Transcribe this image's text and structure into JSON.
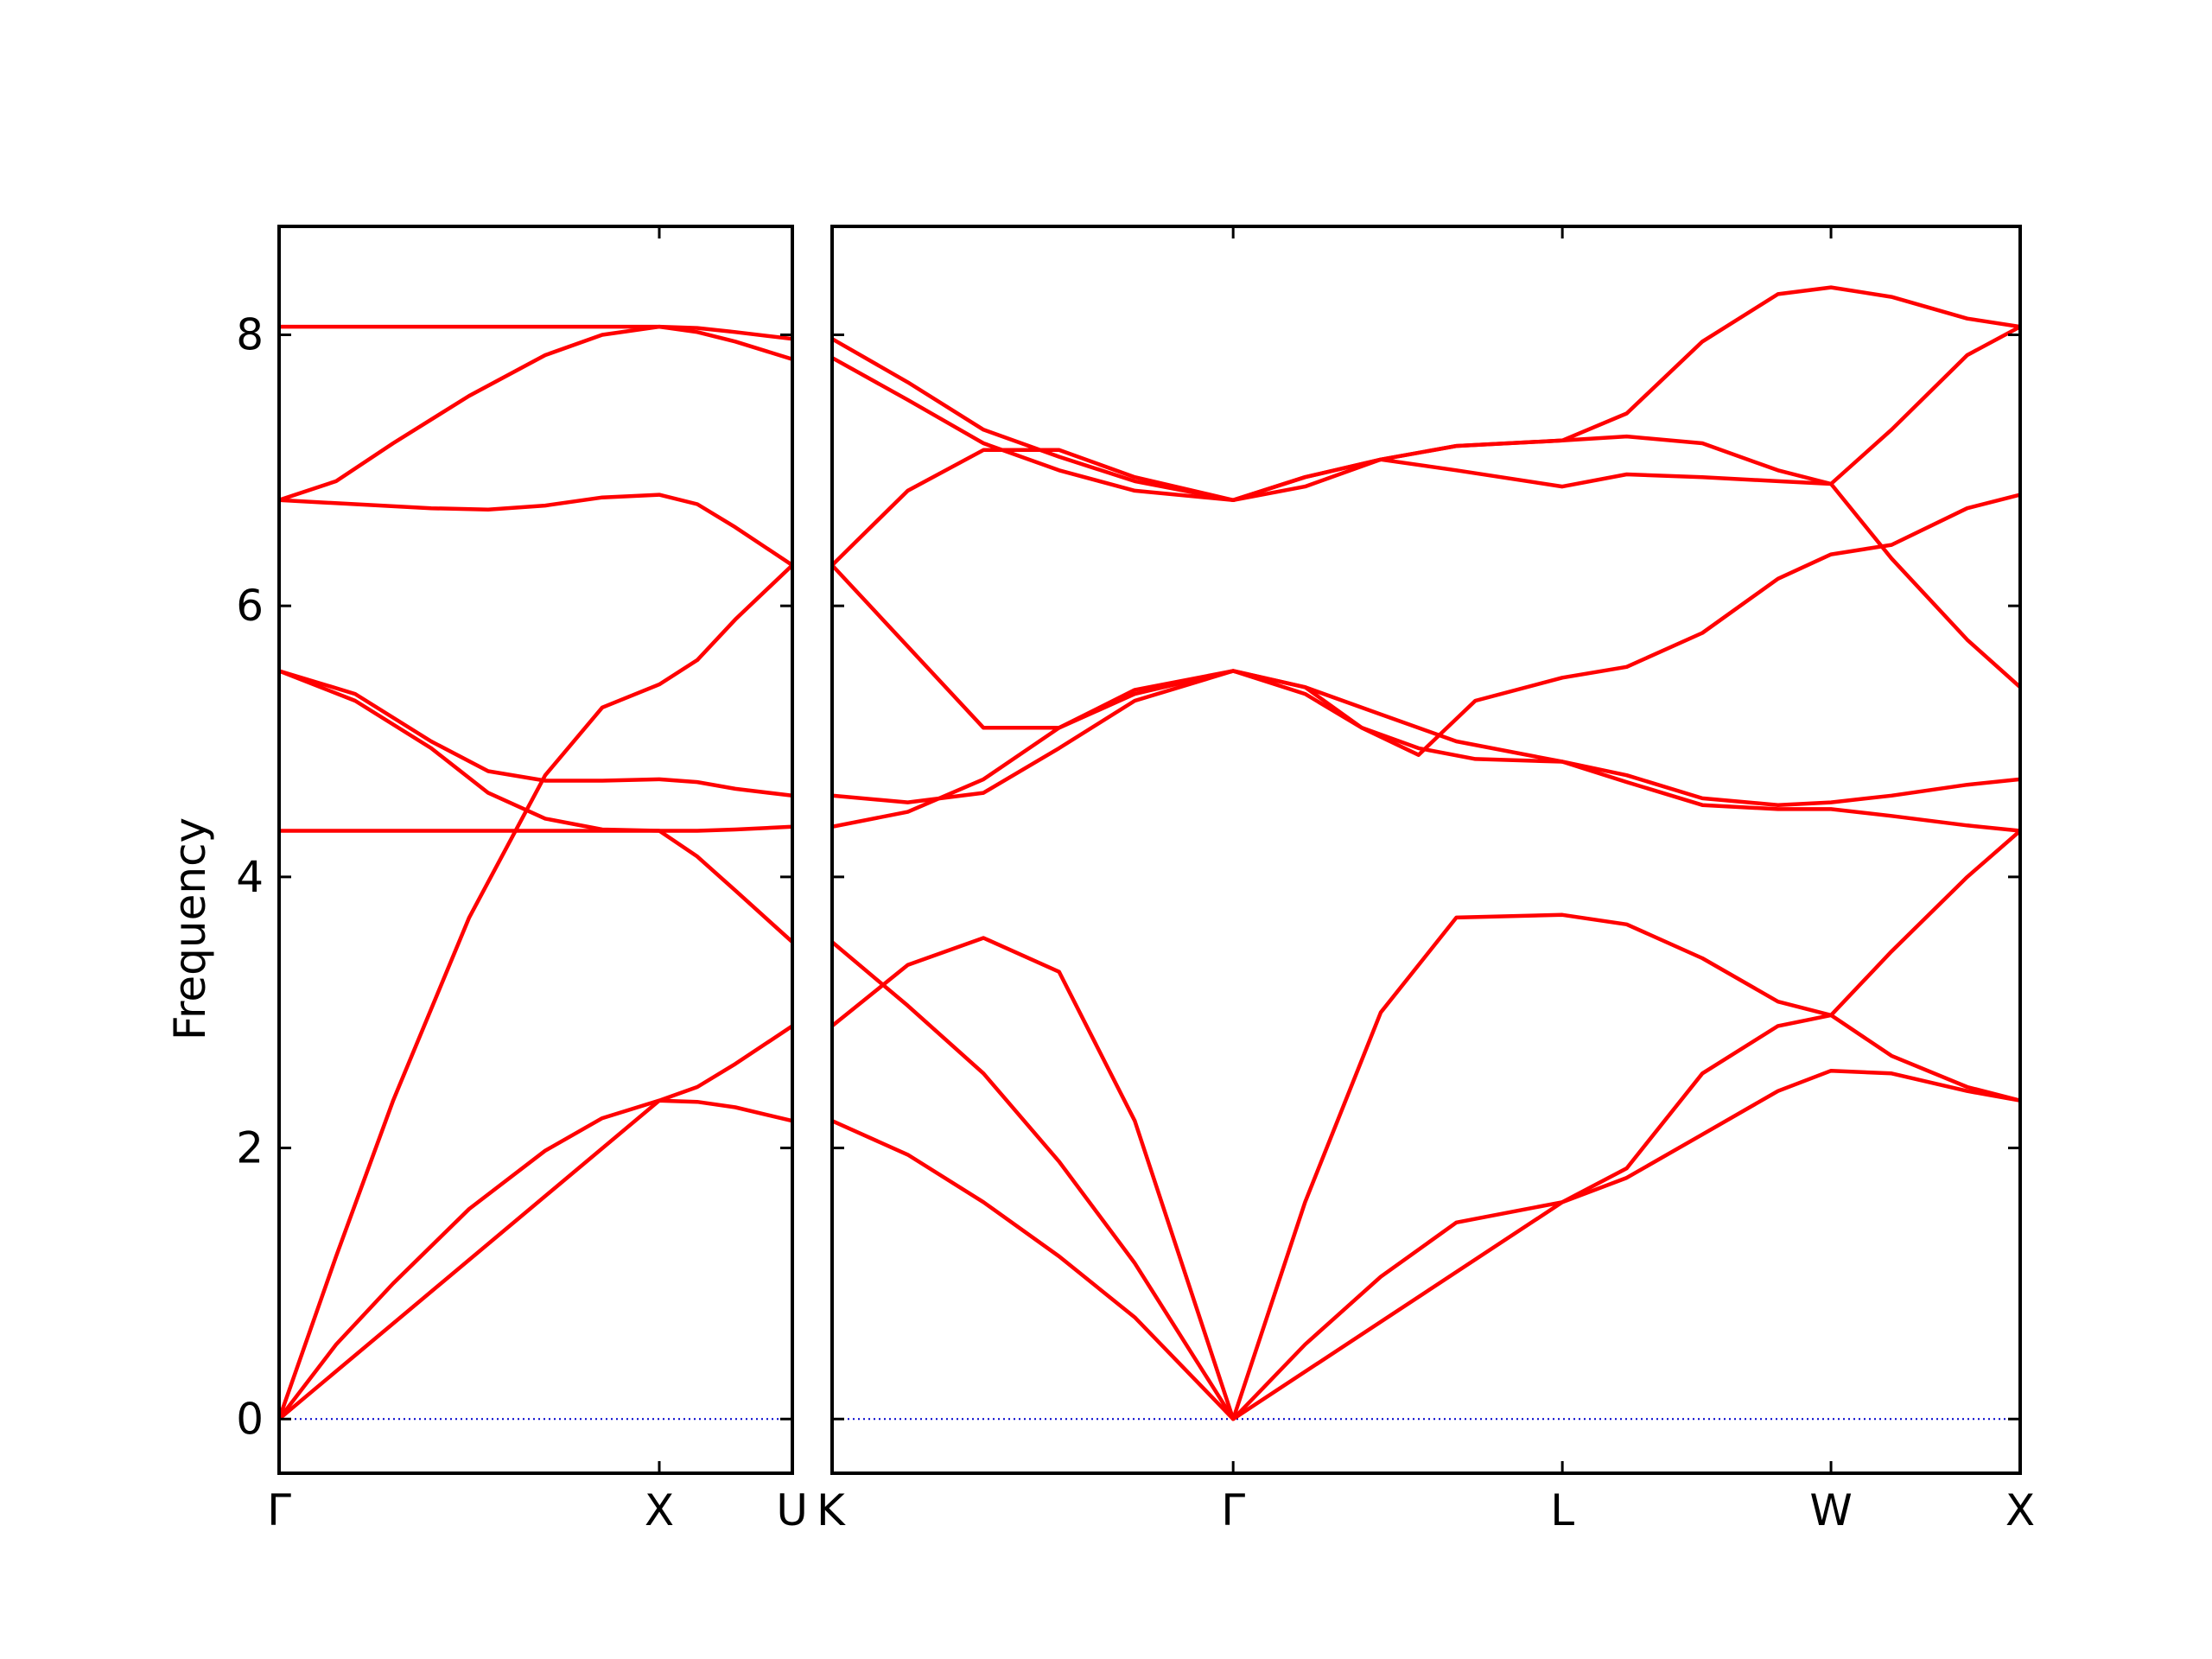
{
  "chart_data": {
    "type": "line",
    "ylabel": "Frequency",
    "ylim": [
      -0.4,
      8.8
    ],
    "yticks": [
      0,
      2,
      4,
      6,
      8
    ],
    "grid": false,
    "legend": "none",
    "colors": {
      "bands": "#ff0000",
      "zero_line": "#0000cc",
      "axes": "#000000"
    },
    "panels": [
      {
        "name": "Γ-X-U",
        "xlim": [
          0,
          1.35
        ],
        "xticks": [
          {
            "x": 0,
            "label": "Γ"
          },
          {
            "x": 1.0,
            "label": "X"
          },
          {
            "x": 1.35,
            "label": "U"
          }
        ],
        "bands": [
          {
            "x": [
              0,
              0.15,
              0.3,
              0.5,
              0.7,
              0.85,
              1.0,
              1.1,
              1.2,
              1.35
            ],
            "y": [
              0,
              0.55,
              1.0,
              1.55,
              1.98,
              2.22,
              2.35,
              2.34,
              2.3,
              2.2
            ]
          },
          {
            "x": [
              0,
              0.15,
              0.3,
              0.5,
              0.7,
              0.85,
              1.0,
              1.1,
              1.2,
              1.35
            ],
            "y": [
              0,
              1.2,
              2.35,
              3.7,
              4.75,
              5.25,
              5.42,
              5.6,
              5.9,
              6.3
            ]
          },
          {
            "x": [
              0,
              1.0,
              1.1,
              1.2,
              1.35
            ],
            "y": [
              0,
              2.35,
              2.45,
              2.62,
              2.9
            ]
          },
          {
            "x": [
              0,
              0.2,
              0.4,
              0.55,
              0.7,
              0.85,
              1.0,
              1.1,
              1.2,
              1.35
            ],
            "y": [
              5.52,
              5.35,
              5.0,
              4.78,
              4.71,
              4.71,
              4.72,
              4.7,
              4.65,
              4.6
            ]
          },
          {
            "x": [
              0,
              0.2,
              0.4,
              0.55,
              0.7,
              0.85,
              1.0,
              1.1,
              1.2,
              1.35
            ],
            "y": [
              5.52,
              5.3,
              4.95,
              4.62,
              4.43,
              4.35,
              4.34,
              4.34,
              4.35,
              4.37
            ]
          },
          {
            "x": [
              0,
              1.0,
              1.1,
              1.2,
              1.35
            ],
            "y": [
              4.34,
              4.34,
              4.15,
              3.9,
              3.52
            ]
          },
          {
            "x": [
              0,
              0.2,
              0.4,
              0.55,
              0.7,
              0.85,
              1.0,
              1.1,
              1.2,
              1.35
            ],
            "y": [
              6.78,
              6.75,
              6.72,
              6.71,
              6.74,
              6.8,
              6.82,
              6.75,
              6.58,
              6.3
            ]
          },
          {
            "x": [
              0,
              0.15,
              0.3,
              0.5,
              0.7,
              0.85,
              1.0,
              1.1,
              1.2,
              1.35
            ],
            "y": [
              6.78,
              6.92,
              7.2,
              7.55,
              7.85,
              8.0,
              8.06,
              8.02,
              7.95,
              7.82
            ]
          },
          {
            "x": [
              0,
              1.0,
              1.1,
              1.2,
              1.35
            ],
            "y": [
              8.06,
              8.06,
              8.05,
              8.02,
              7.97
            ]
          }
        ]
      },
      {
        "name": "K-Γ-L-W-X",
        "xlim": [
          0,
          3.14
        ],
        "xticks": [
          {
            "x": 0,
            "label": "K"
          },
          {
            "x": 1.06,
            "label": "Γ"
          },
          {
            "x": 1.93,
            "label": "L"
          },
          {
            "x": 2.64,
            "label": "W"
          },
          {
            "x": 3.14,
            "label": "X"
          }
        ],
        "bands": [
          {
            "x": [
              0,
              0.2,
              0.4,
              0.6,
              0.8,
              1.06,
              1.25,
              1.45,
              1.65,
              1.93,
              2.1,
              2.3,
              2.5,
              2.64,
              2.8,
              3.0,
              3.14
            ],
            "y": [
              2.2,
              1.95,
              1.6,
              1.2,
              0.75,
              0,
              0.55,
              1.05,
              1.45,
              1.6,
              1.78,
              2.1,
              2.42,
              2.57,
              2.55,
              2.42,
              2.35
            ]
          },
          {
            "x": [
              0,
              0.2,
              0.4,
              0.6,
              0.8,
              1.06,
              1.25,
              1.45,
              1.65,
              1.93,
              2.1,
              2.3,
              2.5,
              2.64,
              2.8,
              3.0,
              3.14
            ],
            "y": [
              3.52,
              3.05,
              2.55,
              1.9,
              1.15,
              0,
              1.6,
              3.0,
              3.7,
              3.72,
              3.65,
              3.4,
              3.08,
              2.98,
              2.68,
              2.45,
              2.35
            ]
          },
          {
            "x": [
              0,
              0.2,
              0.4,
              0.6,
              0.8,
              1.06,
              1.93,
              2.1,
              2.3,
              2.5,
              2.64,
              2.8,
              3.0,
              3.14
            ],
            "y": [
              2.9,
              3.35,
              3.55,
              3.3,
              2.2,
              0,
              1.6,
              1.85,
              2.55,
              2.9,
              2.98,
              3.45,
              4.0,
              4.34
            ]
          },
          {
            "x": [
              0,
              0.2,
              0.4,
              0.6,
              0.8,
              1.06,
              1.25,
              1.4,
              1.55,
              1.7,
              1.93,
              2.1,
              2.3,
              2.5,
              2.64,
              2.8,
              3.0,
              3.14
            ],
            "y": [
              4.6,
              4.55,
              4.62,
              4.95,
              5.3,
              5.52,
              5.35,
              5.1,
              4.95,
              4.87,
              4.85,
              4.7,
              4.53,
              4.5,
              4.5,
              4.45,
              4.38,
              4.34
            ]
          },
          {
            "x": [
              0,
              0.2,
              0.4,
              0.6,
              0.8,
              1.06,
              1.25,
              1.4,
              1.55,
              1.7,
              1.93,
              2.1,
              2.3,
              2.5,
              2.64,
              2.8,
              3.0,
              3.14
            ],
            "y": [
              4.37,
              4.48,
              4.72,
              5.1,
              5.38,
              5.52,
              5.4,
              5.1,
              4.9,
              5.3,
              5.47,
              5.55,
              5.8,
              6.2,
              6.38,
              6.45,
              6.72,
              6.82
            ]
          },
          {
            "x": [
              0,
              0.2,
              0.4,
              0.6,
              0.8,
              1.06,
              1.25,
              1.45,
              1.65,
              1.93,
              2.1,
              2.3,
              2.5,
              2.64,
              2.8,
              3.0,
              3.14
            ],
            "y": [
              6.3,
              5.7,
              5.1,
              5.1,
              5.35,
              5.52,
              5.4,
              5.2,
              5.0,
              4.85,
              4.75,
              4.58,
              4.53,
              4.55,
              4.6,
              4.68,
              4.72
            ]
          },
          {
            "x": [
              0,
              0.2,
              0.4,
              0.6,
              0.8,
              1.06,
              1.25,
              1.45,
              1.65,
              1.93,
              2.1,
              2.3,
              2.5,
              2.64,
              2.8,
              3.0,
              3.14
            ],
            "y": [
              6.3,
              6.85,
              7.15,
              7.15,
              6.95,
              6.78,
              6.95,
              7.08,
              7.18,
              7.22,
              7.25,
              7.2,
              7.0,
              6.9,
              6.35,
              5.75,
              5.4
            ]
          },
          {
            "x": [
              0,
              0.2,
              0.4,
              0.6,
              0.8,
              1.06,
              1.25,
              1.45,
              1.65,
              1.93,
              2.1,
              2.3,
              2.5,
              2.64,
              2.8,
              3.0,
              3.14
            ],
            "y": [
              7.83,
              7.52,
              7.2,
              7.0,
              6.85,
              6.78,
              6.95,
              7.08,
              7.0,
              6.88,
              6.97,
              6.95,
              6.92,
              6.9,
              7.3,
              7.85,
              8.06
            ]
          },
          {
            "x": [
              0,
              0.2,
              0.4,
              0.6,
              0.8,
              1.06,
              1.25,
              1.45,
              1.65,
              1.93,
              2.1,
              2.3,
              2.5,
              2.64,
              2.8,
              3.0,
              3.14
            ],
            "y": [
              7.97,
              7.65,
              7.3,
              7.1,
              6.92,
              6.78,
              6.88,
              7.08,
              7.18,
              7.22,
              7.42,
              7.95,
              8.3,
              8.35,
              8.28,
              8.12,
              8.06
            ]
          }
        ]
      }
    ]
  }
}
